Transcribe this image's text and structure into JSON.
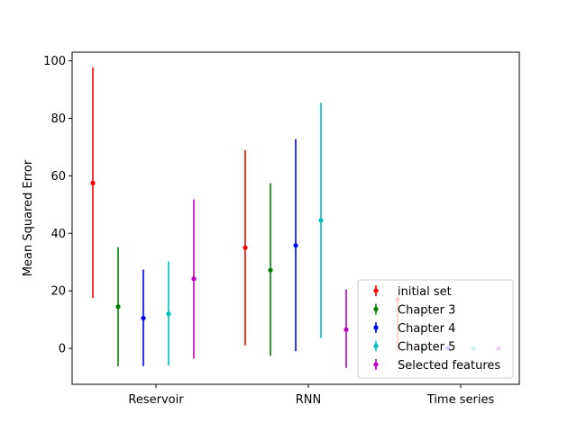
{
  "chart_data": {
    "type": "scatter",
    "title": "",
    "xlabel": "",
    "ylabel": "Mean Squared Error",
    "categories": [
      "Reservoir",
      "RNN",
      "Time series"
    ],
    "ylim": [
      -12.5,
      103
    ],
    "yticks": [
      0,
      20,
      40,
      60,
      80,
      100
    ],
    "grid": false,
    "legend_position": "lower-right",
    "series": [
      {
        "name": "initial set",
        "color": "#ff0000",
        "means": [
          57.5,
          35,
          17
        ],
        "errors": [
          [
            17.5,
            97.8
          ],
          [
            1,
            69
          ],
          [
            -1,
            18
          ]
        ]
      },
      {
        "name": "Chapter 3",
        "color": "#008000",
        "means": [
          14.5,
          27.2,
          0
        ],
        "errors": [
          [
            -6.2,
            35.2
          ],
          [
            -2.6,
            57.4
          ],
          [
            0,
            0
          ]
        ]
      },
      {
        "name": "Chapter 4",
        "color": "#0000ff",
        "means": [
          10.5,
          35.8,
          0
        ],
        "errors": [
          [
            -6.2,
            27.4
          ],
          [
            -1,
            72.8
          ],
          [
            0,
            0
          ]
        ]
      },
      {
        "name": "Chapter 5",
        "color": "#00bfbf",
        "means": [
          12,
          44.5,
          0
        ],
        "errors": [
          [
            -6,
            30.2
          ],
          [
            3.6,
            85.4
          ],
          [
            0,
            0
          ]
        ]
      },
      {
        "name": "Selected features",
        "color": "#bf00bf",
        "means": [
          24.2,
          6.5,
          0
        ],
        "errors": [
          [
            -3.6,
            51.8
          ],
          [
            -6.8,
            20.5
          ],
          [
            0,
            0
          ]
        ]
      }
    ]
  }
}
